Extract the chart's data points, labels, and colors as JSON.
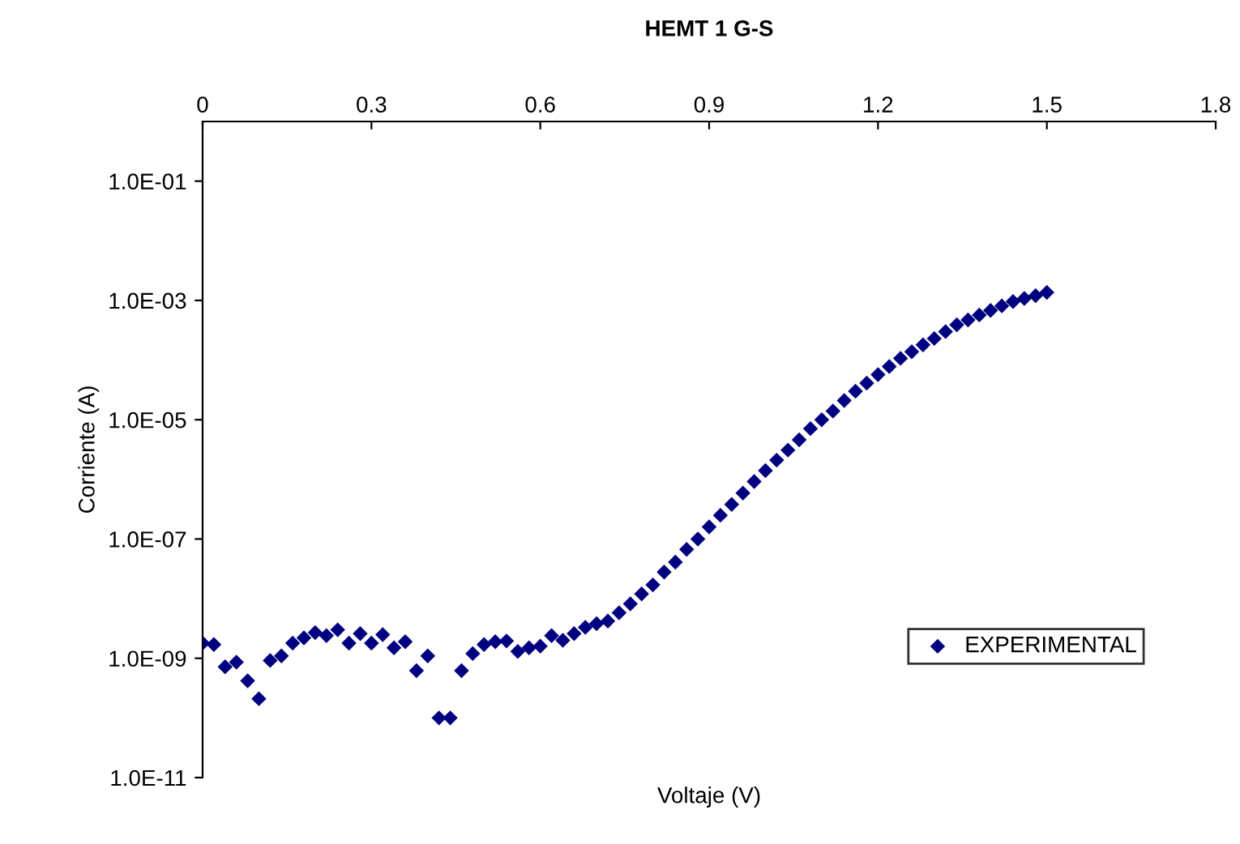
{
  "chart_data": {
    "type": "scatter",
    "title": "HEMT 1 G-S",
    "xlabel": "Voltaje (V)",
    "ylabel": "Corriente (A)",
    "x": [
      0,
      0.02,
      0.04,
      0.06,
      0.08,
      0.1,
      0.12,
      0.14,
      0.16,
      0.18,
      0.2,
      0.22,
      0.24,
      0.26,
      0.28,
      0.3,
      0.32,
      0.34,
      0.36,
      0.38,
      0.4,
      0.42,
      0.44,
      0.46,
      0.48,
      0.5,
      0.52,
      0.54,
      0.56,
      0.58,
      0.6,
      0.62,
      0.64,
      0.66,
      0.68,
      0.7,
      0.72,
      0.74,
      0.76,
      0.78,
      0.8,
      0.82,
      0.84,
      0.86,
      0.88,
      0.9,
      0.92,
      0.94,
      0.96,
      0.98,
      1.0,
      1.02,
      1.04,
      1.06,
      1.08,
      1.1,
      1.12,
      1.14,
      1.16,
      1.18,
      1.2,
      1.22,
      1.24,
      1.26,
      1.28,
      1.3,
      1.32,
      1.34,
      1.36,
      1.38,
      1.4,
      1.42,
      1.44,
      1.46,
      1.48,
      1.5
    ],
    "series": [
      {
        "name": "EXPERIMENTAL",
        "color": "#000080",
        "values": [
          1.8e-09,
          1.7e-09,
          7.2e-10,
          8.6e-10,
          4.2e-10,
          2.1e-10,
          9.2e-10,
          1.1e-09,
          1.8e-09,
          2.2e-09,
          2.7e-09,
          2.4e-09,
          3e-09,
          1.8e-09,
          2.6e-09,
          1.8e-09,
          2.5e-09,
          1.5e-09,
          1.9e-09,
          6.2e-10,
          1.1e-09,
          1e-10,
          1e-10,
          6.2e-10,
          1.2e-09,
          1.7e-09,
          1.9e-09,
          1.95e-09,
          1.3e-09,
          1.5e-09,
          1.6e-09,
          2.4e-09,
          2e-09,
          2.6e-09,
          3.3e-09,
          3.8e-09,
          4.2e-09,
          5.8e-09,
          8.2e-09,
          1.2e-08,
          1.7e-08,
          2.8e-08,
          4.1e-08,
          6.7e-08,
          1e-07,
          1.6e-07,
          2.5e-07,
          3.8e-07,
          5.9e-07,
          9.2e-07,
          1.4e-06,
          2.1e-06,
          3.1e-06,
          4.6e-06,
          7.1e-06,
          1e-05,
          1.4e-05,
          2.1e-05,
          3e-05,
          4.1e-05,
          5.7e-05,
          7.8e-05,
          0.000107,
          0.000138,
          0.00018,
          0.00023,
          0.0003,
          0.00039,
          0.00047,
          0.00057,
          0.00068,
          0.00081,
          0.00096,
          0.00108,
          0.0012,
          0.00136
        ]
      }
    ],
    "xlim": [
      0,
      1.8
    ],
    "xticks": [
      0,
      0.3,
      0.6,
      0.9,
      1.2,
      1.5,
      1.8
    ],
    "ylim": [
      1e-11,
      1
    ],
    "yticks": [
      {
        "value": 0.1,
        "label": "1.0E-01"
      },
      {
        "value": 0.001,
        "label": "1.0E-03"
      },
      {
        "value": 1e-05,
        "label": "1.0E-05"
      },
      {
        "value": 1e-07,
        "label": "1.0E-07"
      },
      {
        "value": 1e-09,
        "label": "1.0E-09"
      },
      {
        "value": 1e-11,
        "label": "1.0E-11"
      }
    ],
    "log": "y",
    "grid": false,
    "legend": "right",
    "marker": "diamond"
  }
}
